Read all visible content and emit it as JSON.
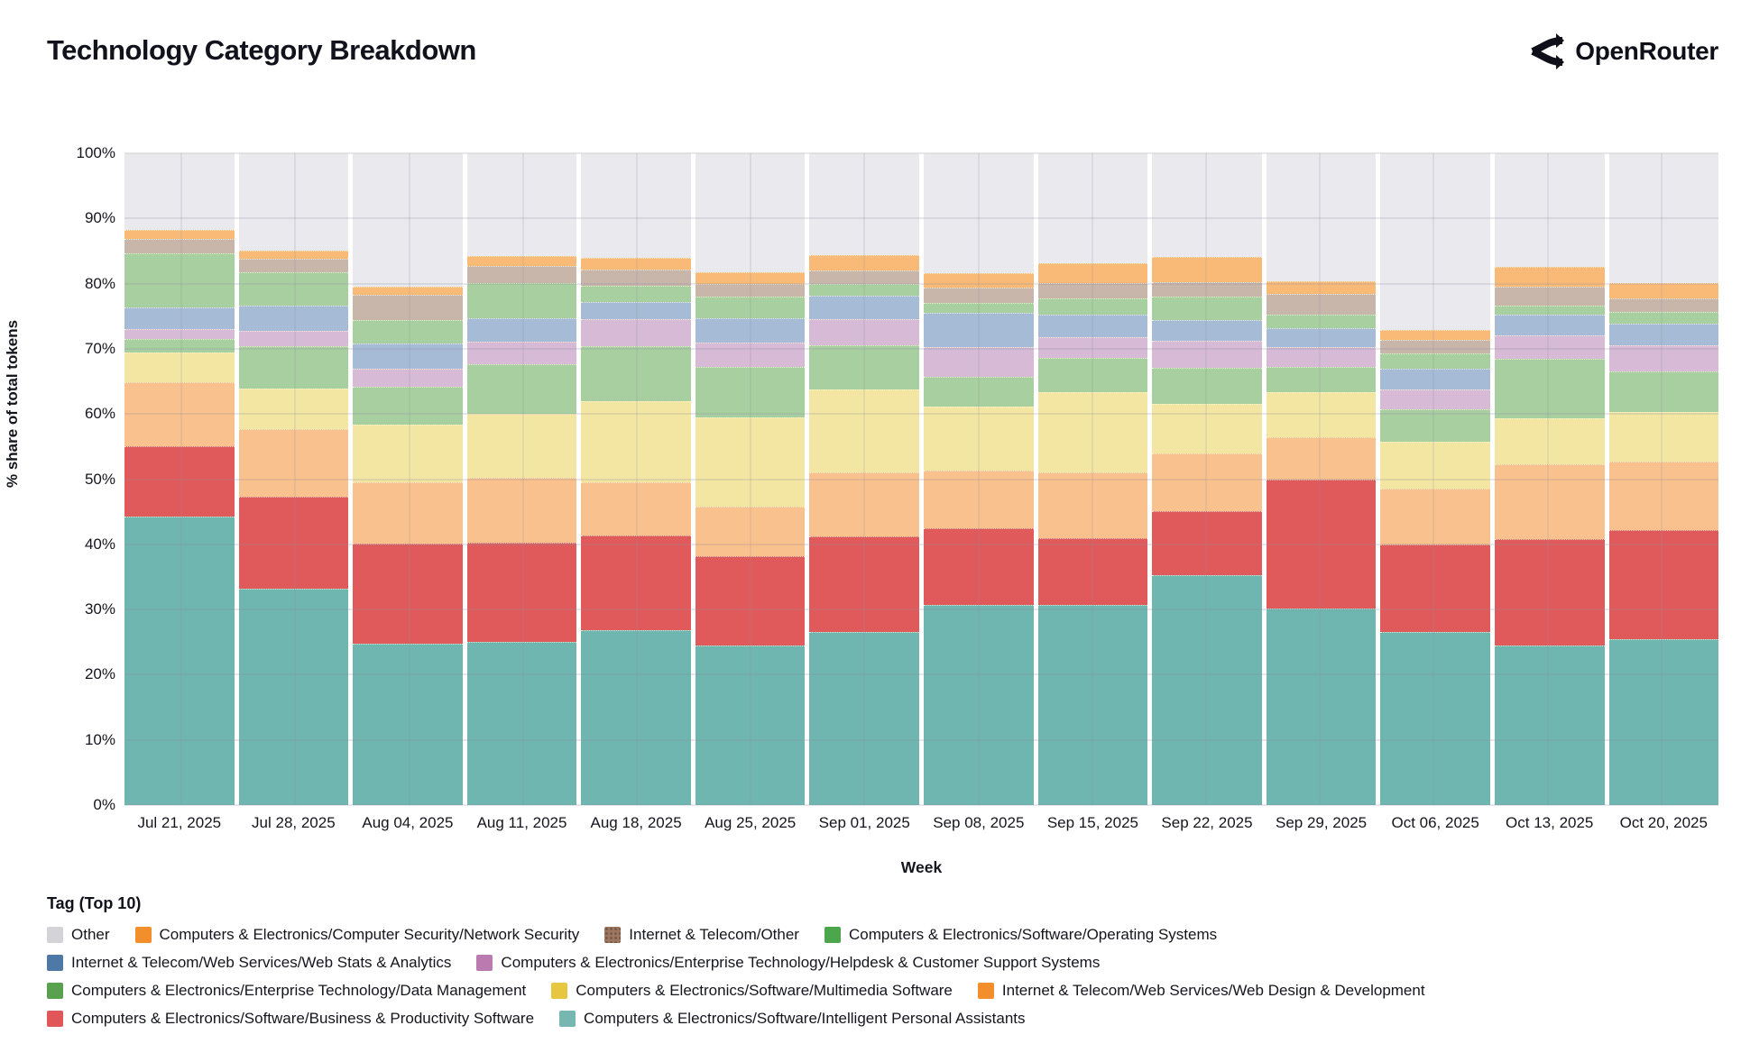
{
  "header": {
    "title": "Technology Category Breakdown",
    "brand": "OpenRouter"
  },
  "axes": {
    "y_title": "% share of total tokens",
    "x_title": "Week",
    "y_ticks": [
      "0%",
      "10%",
      "20%",
      "30%",
      "40%",
      "50%",
      "60%",
      "70%",
      "80%",
      "90%",
      "100%"
    ]
  },
  "legend": {
    "title": "Tag (Top 10)",
    "rows": [
      [
        "other",
        "netsec",
        "itother",
        "os"
      ],
      [
        "webstats",
        "helpdesk"
      ],
      [
        "datamgmt",
        "multimedia",
        "webdesign"
      ],
      [
        "biz",
        "ipa"
      ]
    ]
  },
  "chart_data": {
    "type": "bar",
    "stacked": true,
    "title": "Technology Category Breakdown",
    "xlabel": "Week",
    "ylabel": "% share of total tokens",
    "ylim": [
      0,
      100
    ],
    "grid": true,
    "legend_position": "bottom",
    "categories": [
      "Jul 21, 2025",
      "Jul 28, 2025",
      "Aug 04, 2025",
      "Aug 11, 2025",
      "Aug 18, 2025",
      "Aug 25, 2025",
      "Sep 01, 2025",
      "Sep 08, 2025",
      "Sep 15, 2025",
      "Sep 22, 2025",
      "Sep 29, 2025",
      "Oct 06, 2025",
      "Oct 13, 2025",
      "Oct 20, 2025"
    ],
    "series": [
      {
        "key": "ipa",
        "name": "Computers & Electronics/Software/Intelligent Personal Assistants",
        "bar_color": "#6fb5b0",
        "legend_color": "#76b7b2",
        "pattern": false,
        "values": [
          44.3,
          33.2,
          24.7,
          25.0,
          26.9,
          24.5,
          26.5,
          30.7,
          30.7,
          35.3,
          30.2,
          26.5,
          24.5,
          25.5
        ]
      },
      {
        "key": "biz",
        "name": "Computers & Electronics/Software/Business & Productivity Software",
        "bar_color": "#e05a5c",
        "legend_color": "#e15759",
        "pattern": false,
        "values": [
          10.8,
          14.1,
          15.4,
          15.2,
          14.4,
          13.7,
          14.7,
          11.8,
          10.3,
          9.8,
          19.8,
          13.5,
          16.3,
          16.7
        ]
      },
      {
        "key": "webdesign",
        "name": "Internet & Telecom/Web Services/Web Design & Development",
        "bar_color": "#f9c18d",
        "legend_color": "#f28e2b",
        "pattern": false,
        "values": [
          9.8,
          10.4,
          9.4,
          10.0,
          8.2,
          7.6,
          9.8,
          8.8,
          10.0,
          8.8,
          6.5,
          8.5,
          11.5,
          10.5
        ]
      },
      {
        "key": "multimedia",
        "name": "Computers & Electronics/Software/Multimedia Software",
        "bar_color": "#f3e6a3",
        "legend_color": "#e7c73f",
        "pattern": false,
        "values": [
          4.6,
          6.2,
          8.9,
          9.8,
          12.5,
          13.7,
          12.7,
          9.8,
          12.4,
          7.6,
          6.8,
          7.2,
          7.0,
          7.6
        ]
      },
      {
        "key": "datamgmt",
        "name": "Computers & Electronics/Enterprise Technology/Data Management",
        "bar_color": "#a7cfa0",
        "legend_color": "#59a14f",
        "pattern": false,
        "values": [
          2.0,
          6.5,
          5.8,
          7.7,
          8.4,
          7.7,
          6.8,
          4.6,
          5.2,
          5.6,
          3.9,
          5.0,
          9.2,
          6.2
        ]
      },
      {
        "key": "helpdesk",
        "name": "Computers & Electronics/Enterprise Technology/Helpdesk & Customer Support Systems",
        "bar_color": "#d6bad6",
        "legend_color": "#bb7bb1",
        "pattern": true,
        "values": [
          1.6,
          2.3,
          2.7,
          3.4,
          4.1,
          3.8,
          4.1,
          4.6,
          3.2,
          4.2,
          3.1,
          3.1,
          3.5,
          4.1
        ]
      },
      {
        "key": "webstats",
        "name": "Internet & Telecom/Web Services/Web Stats & Analytics",
        "bar_color": "#a6bcd6",
        "legend_color": "#4e79a7",
        "pattern": false,
        "values": [
          3.3,
          3.9,
          3.9,
          3.6,
          2.7,
          3.7,
          3.5,
          5.2,
          3.5,
          3.1,
          2.9,
          3.1,
          3.3,
          3.3
        ]
      },
      {
        "key": "os",
        "name": "Computers & Electronics/Software/Operating Systems",
        "bar_color": "#a7cfa0",
        "legend_color": "#4ca64c",
        "pattern": false,
        "values": [
          8.2,
          5.2,
          3.6,
          5.4,
          2.5,
          3.3,
          1.8,
          1.6,
          2.4,
          3.6,
          2.0,
          2.4,
          1.3,
          1.8
        ]
      },
      {
        "key": "itother",
        "name": "Internet & Telecom/Other",
        "bar_color": "#c9b6ab",
        "legend_color": "#9d7660",
        "pattern": false,
        "values": [
          2.3,
          2.0,
          3.9,
          2.6,
          2.4,
          2.0,
          2.1,
          2.3,
          2.4,
          2.3,
          3.2,
          2.1,
          3.0,
          2.0
        ]
      },
      {
        "key": "netsec",
        "name": "Computers & Electronics/Computer Security/Network Security",
        "bar_color": "#f9ba78",
        "legend_color": "#f28e2b",
        "pattern": false,
        "values": [
          1.3,
          1.3,
          1.3,
          1.5,
          1.9,
          1.8,
          2.4,
          2.2,
          3.0,
          3.8,
          2.0,
          1.5,
          3.0,
          2.4
        ]
      },
      {
        "key": "other",
        "name": "Other",
        "bar_color": "#e9e9ee",
        "legend_color": "#d4d4d8",
        "pattern": false,
        "values": [
          11.8,
          14.9,
          20.4,
          15.8,
          16.0,
          18.2,
          15.6,
          18.4,
          16.9,
          15.9,
          19.6,
          27.1,
          17.4,
          19.9
        ]
      }
    ]
  }
}
